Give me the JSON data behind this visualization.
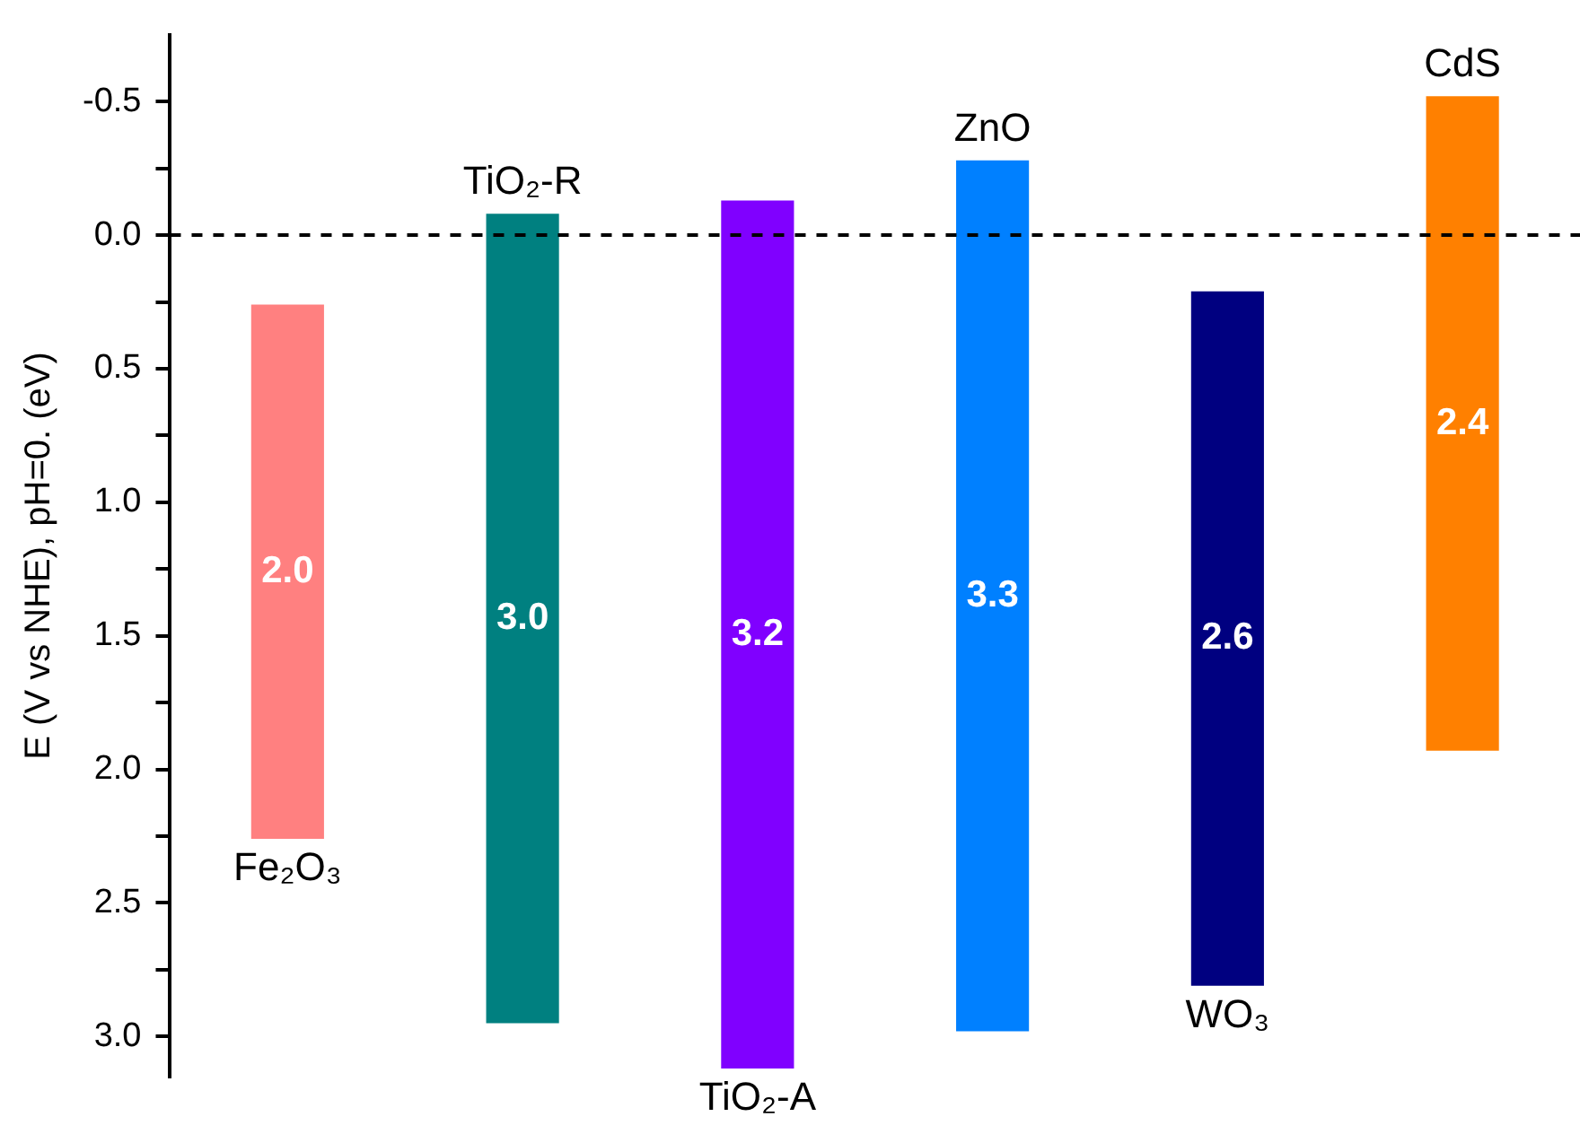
{
  "chart_data": {
    "type": "bar",
    "ylabel": "E (V vs NHE), pH=0. (eV)",
    "categories": [
      "Fe₂O₃",
      "TiO₂-R",
      "TiO₂-A",
      "ZnO",
      "WO₃",
      "CdS"
    ],
    "base": [
      0.26,
      -0.08,
      -0.13,
      -0.28,
      0.21,
      -0.52
    ],
    "values": [
      2.0,
      3.03,
      3.25,
      3.26,
      2.6,
      2.45
    ],
    "colors": [
      "#ff8080",
      "#008080",
      "#8000ff",
      "#0080ff",
      "#000080",
      "#ff8000"
    ],
    "ylim": [
      3.15,
      -0.75
    ],
    "yticks": [
      -0.5,
      {
        "value": -0.25,
        "label": null
      },
      {
        "value": 0,
        "label": "0.0"
      },
      {
        "value": 0.25,
        "label": null
      },
      0.5,
      {
        "value": 0.75,
        "label": null
      },
      {
        "value": 1,
        "label": "1.0"
      },
      {
        "value": 1.25,
        "label": null
      },
      1.5,
      {
        "value": 1.75,
        "label": null
      },
      {
        "value": 2,
        "label": "2.0"
      },
      {
        "value": 2.25,
        "label": null
      },
      2.5,
      {
        "value": 2.75,
        "label": null
      },
      {
        "value": 3,
        "label": "3.0"
      }
    ],
    "ref_lines": [
      {
        "axis": "y",
        "value": 0,
        "color": "#000000",
        "line_style": "dashed"
      }
    ],
    "value_labels": [
      "2.0",
      "3.0",
      "3.2",
      "3.3",
      "2.6",
      "2.4"
    ],
    "grid": false,
    "legend": false,
    "tick_labels": "y"
  }
}
